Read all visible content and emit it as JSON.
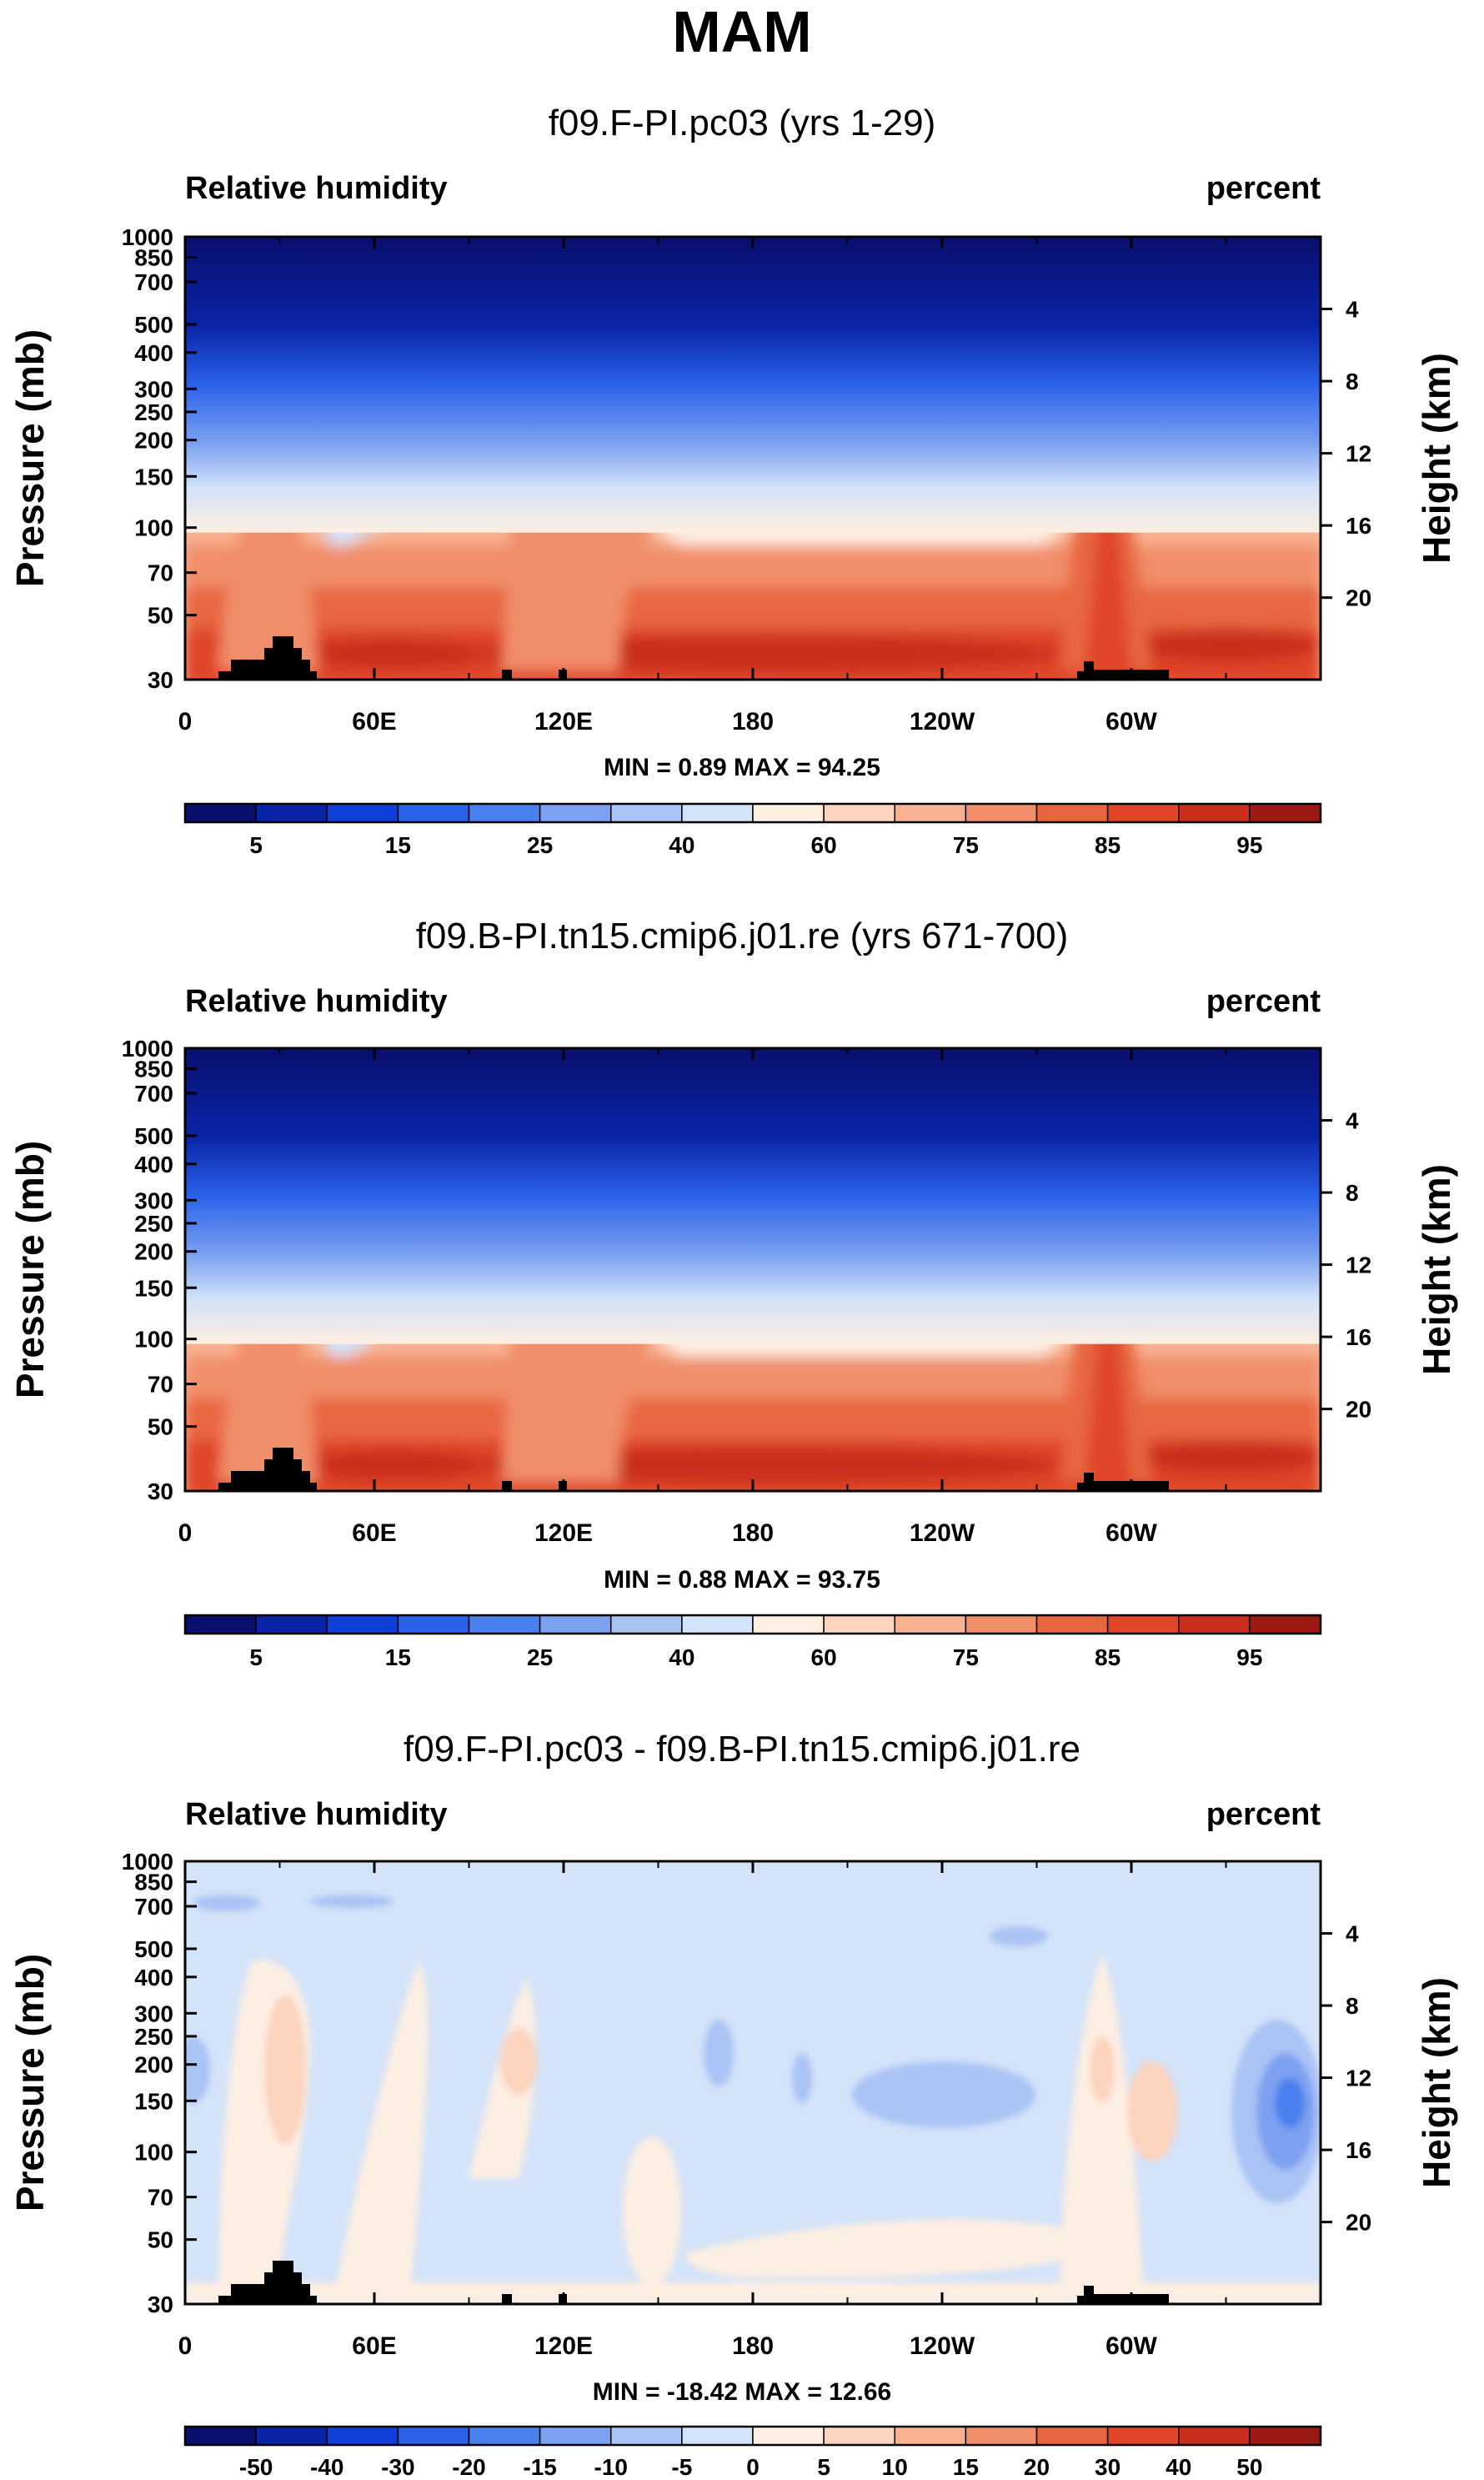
{
  "title": "MAM",
  "colors": {
    "abs_levels": [
      "#0a0f6e",
      "#0a24a8",
      "#0f3fd8",
      "#2a62ea",
      "#4a7fee",
      "#7da1f1",
      "#aac3f5",
      "#d3e3f9",
      "#fdeee2",
      "#fcd3bd",
      "#f8b292",
      "#f18e6a",
      "#e8663f",
      "#df4526",
      "#c92e1c",
      "#9c1a13",
      "#7a0a0a"
    ],
    "diff_levels": [
      "#0a0f6e",
      "#0a24a8",
      "#0f3fd8",
      "#2a62ea",
      "#4a7fee",
      "#7da1f1",
      "#aac3f5",
      "#d3e3f9",
      "#fdeee2",
      "#fcd3bd",
      "#f8b292",
      "#f18e6a",
      "#e8663f",
      "#df4526",
      "#c92e1c",
      "#9c1a13",
      "#7a0a0a"
    ],
    "topo": "#000000"
  },
  "panels": [
    {
      "title": "f09.F-PI.pc03 (yrs 1-29)",
      "left_label": "Relative humidity",
      "right_label": "percent",
      "minmax": "MIN =   0.89  MAX =  94.25",
      "colorbar_labels": [
        "5",
        "15",
        "25",
        "40",
        "60",
        "75",
        "85",
        "95"
      ]
    },
    {
      "title": "f09.B-PI.tn15.cmip6.j01.re (yrs 671-700)",
      "left_label": "Relative humidity",
      "right_label": "percent",
      "minmax": "MIN =   0.88  MAX =  93.75",
      "colorbar_labels": [
        "5",
        "15",
        "25",
        "40",
        "60",
        "75",
        "85",
        "95"
      ]
    },
    {
      "title": "f09.F-PI.pc03 - f09.B-PI.tn15.cmip6.j01.re",
      "left_label": "Relative humidity",
      "right_label": "percent",
      "minmax": "MIN = -18.42  MAX =  12.66",
      "colorbar_labels": [
        "-50",
        "-40",
        "-30",
        "-20",
        "-15",
        "-10",
        "-5",
        "0",
        "5",
        "10",
        "15",
        "20",
        "30",
        "40",
        "50"
      ]
    }
  ],
  "chart_data": [
    {
      "type": "heatmap",
      "title": "f09.F-PI.pc03 (yrs 1-29)",
      "variable": "Relative humidity",
      "units": "percent",
      "xlabel": "",
      "ylabel": "Pressure (mb)",
      "y2label": "Height (km)",
      "x_ticks": [
        "0",
        "60E",
        "120E",
        "180",
        "120W",
        "60W"
      ],
      "x_tick_values": [
        0,
        60,
        120,
        180,
        240,
        300
      ],
      "xlim": [
        0,
        360
      ],
      "y_ticks": [
        "30",
        "50",
        "70",
        "100",
        "150",
        "200",
        "250",
        "300",
        "400",
        "500",
        "700",
        "850",
        "1000"
      ],
      "y_tick_values": [
        30,
        50,
        70,
        100,
        150,
        200,
        250,
        300,
        400,
        500,
        700,
        850,
        1000
      ],
      "ylim": [
        1000,
        30
      ],
      "y2_ticks": [
        "4",
        "8",
        "12",
        "16",
        "20"
      ],
      "y2_tick_values": [
        4,
        8,
        12,
        16,
        20
      ],
      "min": 0.89,
      "max": 94.25,
      "contour_levels": [
        5,
        10,
        15,
        20,
        25,
        30,
        40,
        50,
        60,
        70,
        75,
        80,
        85,
        90,
        95
      ]
    },
    {
      "type": "heatmap",
      "title": "f09.B-PI.tn15.cmip6.j01.re (yrs 671-700)",
      "variable": "Relative humidity",
      "units": "percent",
      "xlabel": "",
      "ylabel": "Pressure (mb)",
      "y2label": "Height (km)",
      "x_ticks": [
        "0",
        "60E",
        "120E",
        "180",
        "120W",
        "60W"
      ],
      "x_tick_values": [
        0,
        60,
        120,
        180,
        240,
        300
      ],
      "xlim": [
        0,
        360
      ],
      "y_ticks": [
        "30",
        "50",
        "70",
        "100",
        "150",
        "200",
        "250",
        "300",
        "400",
        "500",
        "700",
        "850",
        "1000"
      ],
      "y_tick_values": [
        30,
        50,
        70,
        100,
        150,
        200,
        250,
        300,
        400,
        500,
        700,
        850,
        1000
      ],
      "ylim": [
        1000,
        30
      ],
      "y2_ticks": [
        "4",
        "8",
        "12",
        "16",
        "20"
      ],
      "y2_tick_values": [
        4,
        8,
        12,
        16,
        20
      ],
      "min": 0.88,
      "max": 93.75,
      "contour_levels": [
        5,
        10,
        15,
        20,
        25,
        30,
        40,
        50,
        60,
        70,
        75,
        80,
        85,
        90,
        95
      ]
    },
    {
      "type": "heatmap",
      "title": "f09.F-PI.pc03 - f09.B-PI.tn15.cmip6.j01.re",
      "variable": "Relative humidity",
      "units": "percent",
      "xlabel": "",
      "ylabel": "Pressure (mb)",
      "y2label": "Height (km)",
      "x_ticks": [
        "0",
        "60E",
        "120E",
        "180",
        "120W",
        "60W"
      ],
      "x_tick_values": [
        0,
        60,
        120,
        180,
        240,
        300
      ],
      "xlim": [
        0,
        360
      ],
      "y_ticks": [
        "30",
        "50",
        "70",
        "100",
        "150",
        "200",
        "250",
        "300",
        "400",
        "500",
        "700",
        "850",
        "1000"
      ],
      "y_tick_values": [
        30,
        50,
        70,
        100,
        150,
        200,
        250,
        300,
        400,
        500,
        700,
        850,
        1000
      ],
      "ylim": [
        1000,
        30
      ],
      "y2_ticks": [
        "4",
        "8",
        "12",
        "16",
        "20"
      ],
      "y2_tick_values": [
        4,
        8,
        12,
        16,
        20
      ],
      "min": -18.42,
      "max": 12.66,
      "contour_levels": [
        -50,
        -40,
        -30,
        -20,
        -15,
        -10,
        -5,
        0,
        5,
        10,
        15,
        20,
        30,
        40,
        50
      ]
    }
  ]
}
